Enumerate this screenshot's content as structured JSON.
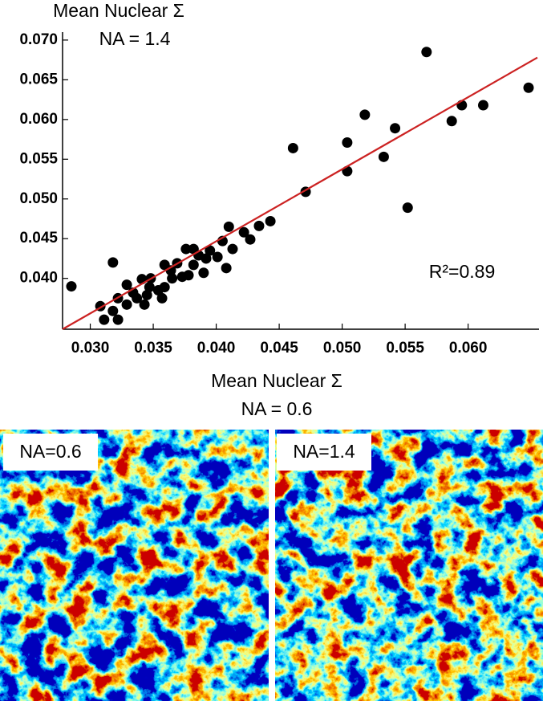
{
  "chart_data": {
    "type": "scatter",
    "y_label": [
      "Mean Nuclear Σ",
      "NA = 1.4"
    ],
    "x_label": [
      "Mean Nuclear Σ",
      "NA = 0.6"
    ],
    "annotation": "R²=0.89",
    "color": "#000000",
    "x": [
      0.0285,
      0.0308,
      0.0311,
      0.0318,
      0.0318,
      0.0322,
      0.0322,
      0.0329,
      0.0329,
      0.0334,
      0.0337,
      0.0341,
      0.0343,
      0.0345,
      0.0347,
      0.0348,
      0.0354,
      0.0357,
      0.0359,
      0.0359,
      0.0364,
      0.0365,
      0.0369,
      0.0373,
      0.0376,
      0.0378,
      0.0382,
      0.0382,
      0.0386,
      0.039,
      0.0392,
      0.0395,
      0.0401,
      0.0405,
      0.0408,
      0.041,
      0.0413,
      0.0422,
      0.0427,
      0.0434,
      0.0443,
      0.0461,
      0.0471,
      0.0504,
      0.0504,
      0.0518,
      0.0533,
      0.0542,
      0.0552,
      0.0567,
      0.0587,
      0.0595,
      0.0612,
      0.0648
    ],
    "values": [
      0.039,
      0.0365,
      0.0348,
      0.042,
      0.0359,
      0.0375,
      0.0348,
      0.0392,
      0.0367,
      0.0382,
      0.0375,
      0.0399,
      0.0367,
      0.0379,
      0.0389,
      0.04,
      0.0385,
      0.0375,
      0.0417,
      0.0389,
      0.041,
      0.04,
      0.0419,
      0.0402,
      0.0437,
      0.0404,
      0.0437,
      0.0417,
      0.0429,
      0.0407,
      0.0425,
      0.0435,
      0.0427,
      0.0447,
      0.0413,
      0.0465,
      0.0437,
      0.0458,
      0.0449,
      0.0466,
      0.0472,
      0.0564,
      0.0509,
      0.0571,
      0.0535,
      0.0606,
      0.0553,
      0.0589,
      0.0489,
      0.0685,
      0.0598,
      0.0618,
      0.0618,
      0.064
    ],
    "fit_line": {
      "x": [
        0.0278,
        0.0655
      ],
      "values": [
        0.0336,
        0.0678
      ],
      "color": "#cc2222"
    },
    "xlim": [
      0.0278,
      0.0655
    ],
    "ylim": [
      0.0336,
      0.071
    ],
    "xticks": [
      {
        "value": 0.03,
        "label": "0.030"
      },
      {
        "value": 0.035,
        "label": "0.035"
      },
      {
        "value": 0.04,
        "label": "0.040"
      },
      {
        "value": 0.045,
        "label": "0.045"
      },
      {
        "value": 0.05,
        "label": "0.050"
      },
      {
        "value": 0.055,
        "label": "0.055"
      },
      {
        "value": 0.06,
        "label": "0.060"
      }
    ],
    "yticks": [
      {
        "value": 0.04,
        "label": "0.040"
      },
      {
        "value": 0.045,
        "label": "0.045"
      },
      {
        "value": 0.05,
        "label": "0.050"
      },
      {
        "value": 0.055,
        "label": "0.055"
      },
      {
        "value": 0.06,
        "label": "0.060"
      },
      {
        "value": 0.065,
        "label": "0.065"
      },
      {
        "value": 0.07,
        "label": "0.070"
      }
    ],
    "grid": false
  },
  "images": [
    {
      "label": "NA=0.6"
    },
    {
      "label": "NA=1.4"
    }
  ]
}
